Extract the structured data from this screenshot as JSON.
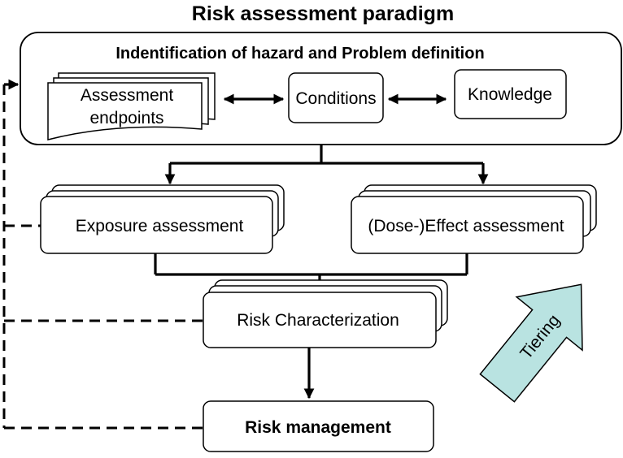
{
  "title": "Risk assessment paradigm",
  "problem_box": {
    "heading": "Indentification of hazard and Problem definition",
    "endpoints": {
      "line1": "Assessment",
      "line2": "endpoints"
    },
    "conditions": "Conditions",
    "knowledge": "Knowledge"
  },
  "exposure": "Exposure assessment",
  "effect": "(Dose-)Effect assessment",
  "characterization": "Risk Characterization",
  "management": "Risk management",
  "tiering": "Tiering",
  "colors": {
    "tiering_fill": "#b9e3e1",
    "stroke": "#000000",
    "background": "#ffffff"
  }
}
